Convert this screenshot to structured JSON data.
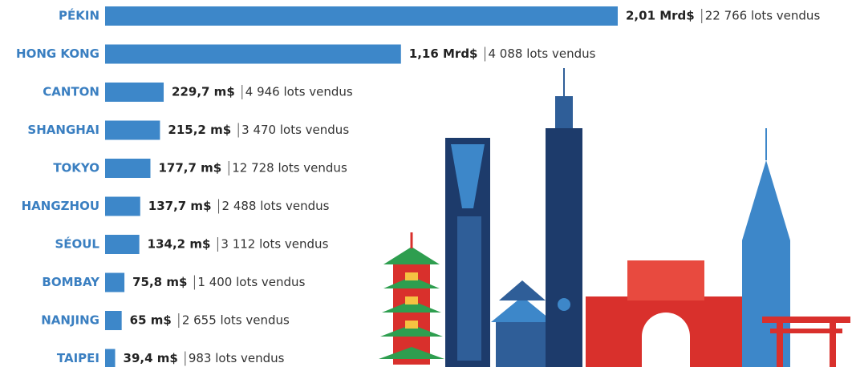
{
  "chart_data": {
    "type": "bar",
    "orientation": "horizontal",
    "color": "#3d87c9",
    "categories": [
      "PÉKIN",
      "HONG KONG",
      "CANTON",
      "SHANGHAI",
      "TOKYO",
      "HANGZHOU",
      "SÉOUL",
      "BOMBAY",
      "NANJING",
      "TAIPEI"
    ],
    "values": [
      2010,
      1160,
      229.7,
      215.2,
      177.7,
      137.7,
      134.2,
      75.8,
      65,
      39.4
    ],
    "value_labels": [
      "2,01 Mrd$",
      "1,16 Mrd$",
      "229,7 m$",
      "215,2 m$",
      "177,7 m$",
      "137,7 m$",
      "134,2 m$",
      "75,8 m$",
      "65 m$",
      "39,4 m$"
    ],
    "lot_labels": [
      "22 766 lots vendus",
      "4 088 lots vendus",
      "4 946 lots vendus",
      "3 470 lots vendus",
      "12 728 lots vendus",
      "2 488 lots vendus",
      "3 112 lots vendus",
      "1 400 lots vendus",
      "2 655 lots vendus",
      "983 lots vendus"
    ]
  }
}
